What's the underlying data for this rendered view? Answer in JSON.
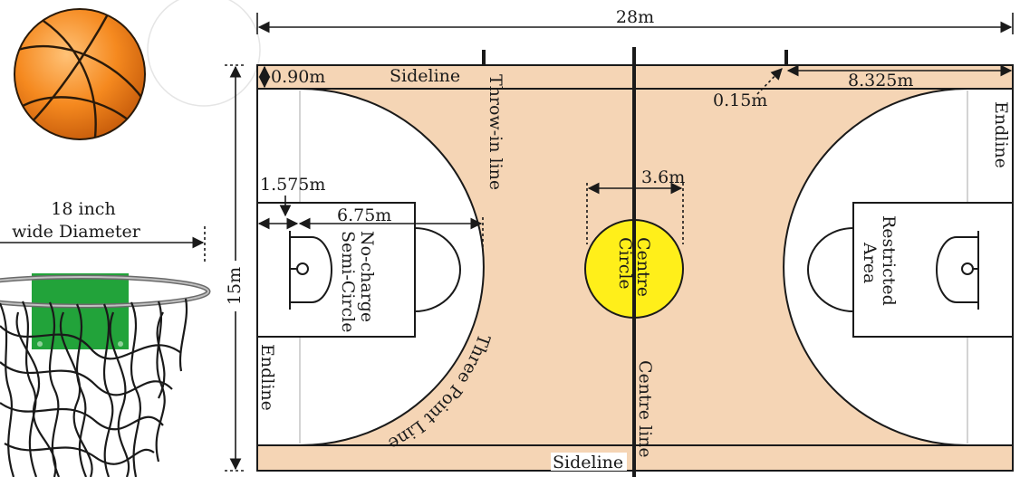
{
  "dimensions": {
    "court_length": "28m",
    "court_width": "15m",
    "sideline_margin": "0.90m",
    "line_width": "0.15m",
    "throw_in_offset": "8.325m",
    "basket_offset": "1.575m",
    "three_point_radius": "6.75m",
    "centre_circle_diameter": "3.6m"
  },
  "labels": {
    "sideline_top": "Sideline",
    "sideline_bottom": "Sideline",
    "throw_in_line": "Throw-in line",
    "endline_left": "Endline",
    "endline_right": "Endline",
    "no_charge": [
      "No-charge",
      "Semi-Circle"
    ],
    "three_point_line": "Three Point Line",
    "centre_circle": [
      "Centre",
      "Circle"
    ],
    "centre_line": "Centre line",
    "restricted_area": [
      "Restricted",
      "Area"
    ]
  },
  "hoop": {
    "caption_line1": "18 inch",
    "caption_line2": "wide Diameter"
  },
  "colors": {
    "court": "#f5d5b5",
    "centre_circle": "#ffef1a",
    "backboard": "#22a33a",
    "ball": "#f5891f"
  }
}
